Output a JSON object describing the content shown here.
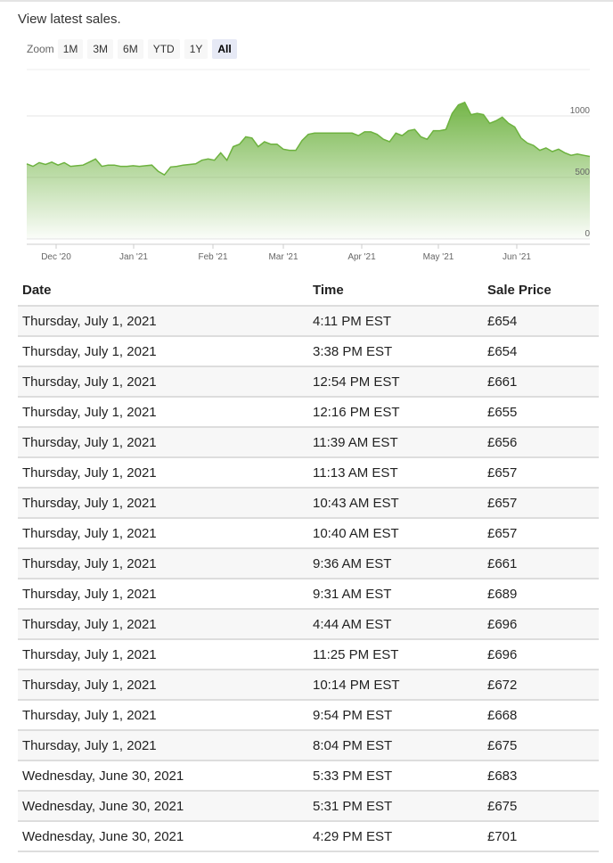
{
  "subtitle": "View latest sales.",
  "zoom": {
    "label": "Zoom",
    "buttons": [
      "1M",
      "3M",
      "6M",
      "YTD",
      "1Y",
      "All"
    ],
    "active": "All"
  },
  "chart_data": {
    "type": "area",
    "xlabel": "",
    "ylabel": "",
    "ylim": [
      0,
      1000
    ],
    "yticks": [
      0,
      500,
      1000
    ],
    "y_axis_side": "right",
    "grid": true,
    "legend": "none",
    "x_tick_labels": [
      "Dec '20",
      "Jan '21",
      "Feb '21",
      "Mar '21",
      "Apr '21",
      "May '21",
      "Jun '21"
    ],
    "color": "#6db23f",
    "series": [
      {
        "values": [
          610,
          590,
          620,
          605,
          625,
          600,
          620,
          590,
          595,
          600,
          625,
          650,
          590,
          600,
          600,
          590,
          590,
          595,
          590,
          595,
          600,
          550,
          520,
          585,
          590,
          600,
          605,
          610,
          640,
          650,
          640,
          700,
          640,
          750,
          770,
          830,
          820,
          750,
          790,
          770,
          770,
          730,
          720,
          720,
          800,
          850,
          860,
          860,
          860,
          860,
          860,
          860,
          860,
          840,
          870,
          870,
          850,
          810,
          790,
          860,
          840,
          880,
          890,
          830,
          810,
          880,
          880,
          890,
          1020,
          1090,
          1110,
          1010,
          1020,
          1010,
          940,
          960,
          990,
          940,
          910,
          820,
          780,
          760,
          720,
          740,
          710,
          730,
          700,
          680,
          690,
          680,
          670
        ]
      }
    ]
  },
  "table": {
    "headers": [
      "Date",
      "Time",
      "Sale Price"
    ],
    "rows": [
      [
        "Thursday, July 1, 2021",
        "4:11 PM EST",
        "£654"
      ],
      [
        "Thursday, July 1, 2021",
        "3:38 PM EST",
        "£654"
      ],
      [
        "Thursday, July 1, 2021",
        "12:54 PM EST",
        "£661"
      ],
      [
        "Thursday, July 1, 2021",
        "12:16 PM EST",
        "£655"
      ],
      [
        "Thursday, July 1, 2021",
        "11:39 AM EST",
        "£656"
      ],
      [
        "Thursday, July 1, 2021",
        "11:13 AM EST",
        "£657"
      ],
      [
        "Thursday, July 1, 2021",
        "10:43 AM EST",
        "£657"
      ],
      [
        "Thursday, July 1, 2021",
        "10:40 AM EST",
        "£657"
      ],
      [
        "Thursday, July 1, 2021",
        "9:36 AM EST",
        "£661"
      ],
      [
        "Thursday, July 1, 2021",
        "9:31 AM EST",
        "£689"
      ],
      [
        "Thursday, July 1, 2021",
        "4:44 AM EST",
        "£696"
      ],
      [
        "Thursday, July 1, 2021",
        "11:25 PM EST",
        "£696"
      ],
      [
        "Thursday, July 1, 2021",
        "10:14 PM EST",
        "£672"
      ],
      [
        "Thursday, July 1, 2021",
        "9:54 PM EST",
        "£668"
      ],
      [
        "Thursday, July 1, 2021",
        "8:04 PM EST",
        "£675"
      ],
      [
        "Wednesday, June 30, 2021",
        "5:33 PM EST",
        "£683"
      ],
      [
        "Wednesday, June 30, 2021",
        "5:31 PM EST",
        "£675"
      ],
      [
        "Wednesday, June 30, 2021",
        "4:29 PM EST",
        "£701"
      ]
    ]
  }
}
